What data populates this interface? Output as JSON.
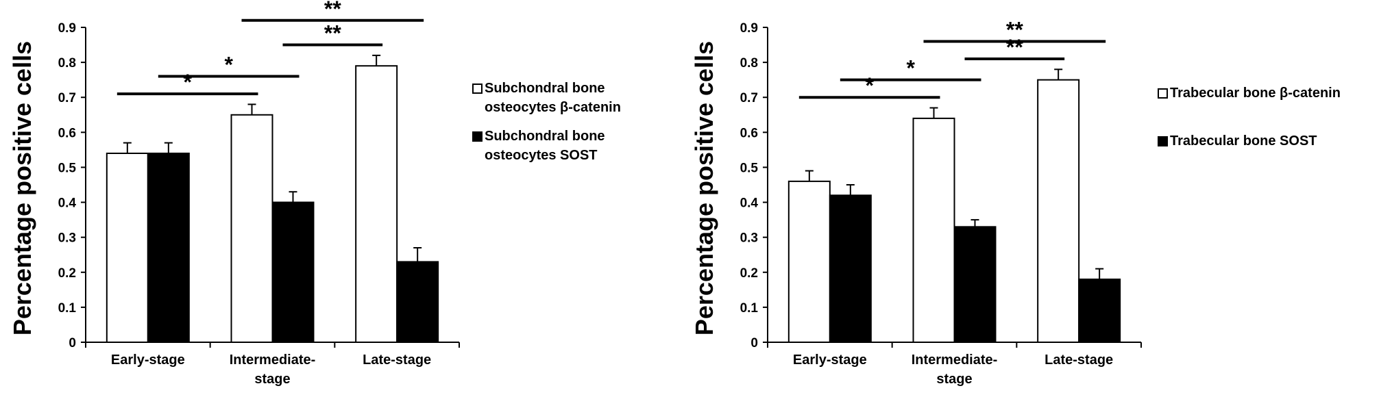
{
  "chart_data": [
    {
      "type": "bar",
      "ylabel": "Percentage positive cells",
      "xlabel": "",
      "ylim": [
        0,
        0.9
      ],
      "yticks": [
        "0",
        "0.1",
        "0.2",
        "0.3",
        "0.4",
        "0.5",
        "0.6",
        "0.7",
        "0.8",
        "0.9"
      ],
      "categories": [
        [
          "Early-stage"
        ],
        [
          "Intermediate-",
          "stage"
        ],
        [
          "Late-stage"
        ]
      ],
      "series": [
        {
          "name": [
            "Subchondral bone",
            "osteocytes β-catenin"
          ],
          "color": "#ffffff",
          "values": [
            0.54,
            0.65,
            0.79
          ],
          "errors": [
            0.03,
            0.03,
            0.03
          ]
        },
        {
          "name": [
            "Subchondral bone",
            "osteocytes SOST"
          ],
          "color": "#000000",
          "values": [
            0.54,
            0.4,
            0.23
          ],
          "errors": [
            0.03,
            0.03,
            0.04
          ]
        }
      ],
      "significance": [
        {
          "label": "*",
          "y": 0.71
        },
        {
          "label": "*",
          "y": 0.76
        },
        {
          "label": "**",
          "y": 0.85
        },
        {
          "label": "**",
          "y": 0.92
        }
      ],
      "legend_position": "right"
    },
    {
      "type": "bar",
      "ylabel": "Percentage positive cells",
      "xlabel": "",
      "ylim": [
        0,
        0.9
      ],
      "yticks": [
        "0",
        "0.1",
        "0.2",
        "0.3",
        "0.4",
        "0.5",
        "0.6",
        "0.7",
        "0.8",
        "0.9"
      ],
      "categories": [
        [
          "Early-stage"
        ],
        [
          "Intermediate-",
          "stage"
        ],
        [
          "Late-stage"
        ]
      ],
      "series": [
        {
          "name": [
            "Trabecular bone  β-catenin"
          ],
          "color": "#ffffff",
          "values": [
            0.46,
            0.64,
            0.75
          ],
          "errors": [
            0.03,
            0.03,
            0.03
          ]
        },
        {
          "name": [
            "Trabecular bone SOST"
          ],
          "color": "#000000",
          "values": [
            0.42,
            0.33,
            0.18
          ],
          "errors": [
            0.03,
            0.02,
            0.03
          ]
        }
      ],
      "significance": [
        {
          "label": "*",
          "y": 0.7
        },
        {
          "label": "*",
          "y": 0.75
        },
        {
          "label": "**",
          "y": 0.81
        },
        {
          "label": "**",
          "y": 0.86
        }
      ],
      "legend_position": "right"
    }
  ]
}
